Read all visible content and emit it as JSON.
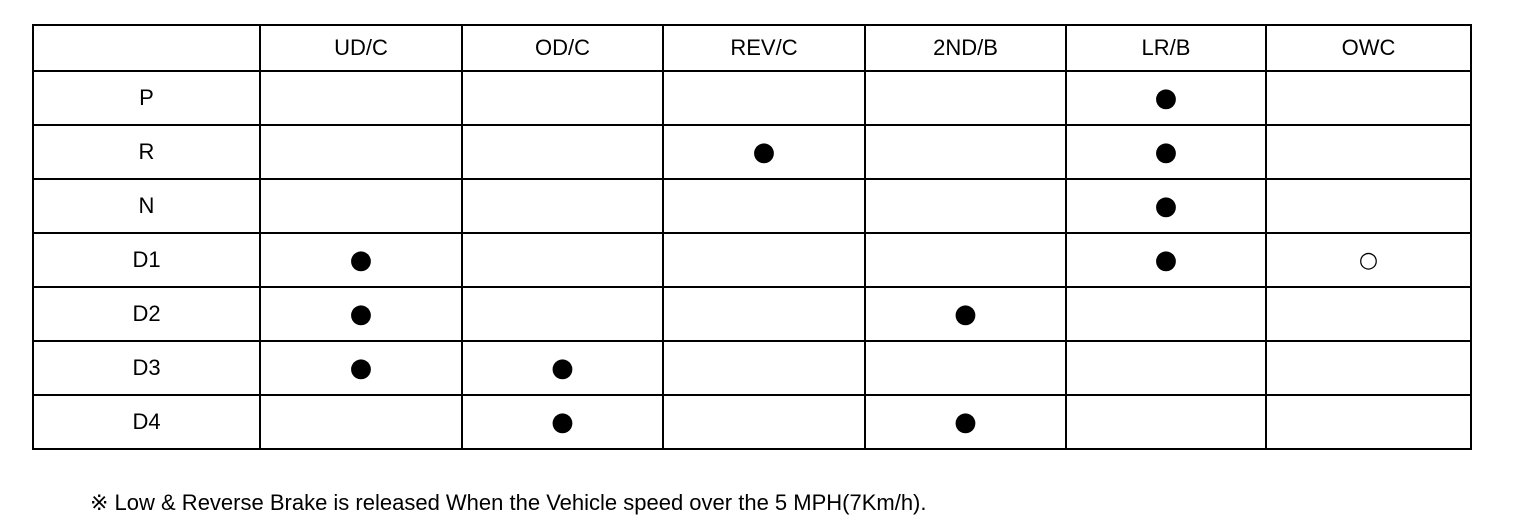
{
  "table": {
    "header": [
      null,
      "UD/C",
      "OD/C",
      "REV/C",
      "2ND/B",
      "LR/B",
      "OWC"
    ],
    "rows": [
      [
        "P",
        null,
        null,
        null,
        null,
        "●",
        null
      ],
      [
        "R",
        null,
        null,
        "●",
        null,
        "●",
        null
      ],
      [
        "N",
        null,
        null,
        null,
        null,
        "●",
        null
      ],
      [
        "D1",
        "●",
        null,
        null,
        null,
        "●",
        "○"
      ],
      [
        "D2",
        "●",
        null,
        null,
        "●",
        null,
        null
      ],
      [
        "D3",
        "●",
        "●",
        null,
        null,
        null,
        null
      ],
      [
        "D4",
        null,
        "●",
        null,
        "●",
        null,
        null
      ]
    ]
  },
  "footnote": "※ Low & Reverse Brake is released When the Vehicle speed over the 5 MPH(7Km/h)."
}
